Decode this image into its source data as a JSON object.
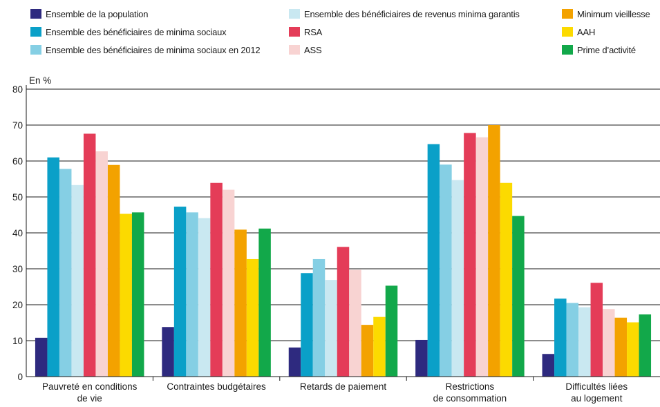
{
  "chart_data": {
    "type": "bar",
    "unit_label": "En %",
    "ylim": [
      0,
      80
    ],
    "yticks": [
      0,
      10,
      20,
      30,
      40,
      50,
      60,
      70,
      80
    ],
    "grid": true,
    "legend_position": "top",
    "categories": [
      [
        "Pauvreté en conditions",
        "de vie"
      ],
      [
        "Contraintes budgétaires"
      ],
      [
        "Retards de paiement"
      ],
      [
        "Restrictions",
        "de consommation"
      ],
      [
        "Difficultés liées",
        "au logement"
      ]
    ],
    "series": [
      {
        "name": "Ensemble de la population",
        "color": "#2e2a7f",
        "values": [
          10.8,
          13.8,
          8.1,
          10.2,
          6.3
        ]
      },
      {
        "name": "Ensemble des bénéficiaires de minima sociaux",
        "color": "#0aa0c8",
        "values": [
          61,
          47.3,
          28.8,
          64.7,
          21.7
        ]
      },
      {
        "name": "Ensemble des bénéficiaires de minima sociaux en 2012",
        "color": "#85cfe4",
        "values": [
          57.8,
          45.7,
          32.7,
          59,
          20.5
        ]
      },
      {
        "name": "Ensemble des bénéficiaires de revenus minima garantis",
        "color": "#c9e8f1",
        "values": [
          53.3,
          44.1,
          26.9,
          54.7,
          19.3
        ]
      },
      {
        "name": "RSA",
        "color": "#e43c58",
        "values": [
          67.6,
          53.9,
          36.1,
          67.8,
          26.1
        ]
      },
      {
        "name": "ASS",
        "color": "#f8d3d2",
        "values": [
          62.7,
          52,
          29.7,
          66.6,
          18.8
        ]
      },
      {
        "name": "Minimum vieillesse",
        "color": "#f3a200",
        "values": [
          58.9,
          40.9,
          14.4,
          70,
          16.4
        ]
      },
      {
        "name": "AAH",
        "color": "#fcda00",
        "values": [
          45.3,
          32.7,
          16.6,
          53.9,
          15.1
        ]
      },
      {
        "name": "Prime d’activité",
        "color": "#12a84a",
        "values": [
          45.7,
          41.2,
          25.3,
          44.7,
          17.3
        ]
      }
    ]
  }
}
